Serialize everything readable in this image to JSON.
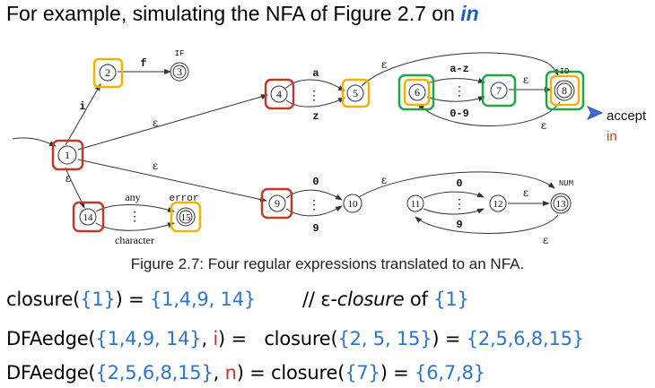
{
  "heading": {
    "prefix": "For example, simulating the NFA of Figure 2.7 on ",
    "keyword": "in"
  },
  "diagram": {
    "states": [
      "1",
      "2",
      "3",
      "4",
      "5",
      "6",
      "7",
      "8",
      "9",
      "10",
      "11",
      "12",
      "13",
      "14",
      "15"
    ],
    "state_tags": {
      "s3": "IF",
      "s8": "ID",
      "s13": "NUM"
    },
    "edge_labels": {
      "i": "i",
      "f": "f",
      "a": "a",
      "z": "z",
      "a_z": "a-z",
      "0_9": "0-9",
      "zero": "0",
      "nine": "9",
      "any": "any",
      "error": "error",
      "character": "character",
      "epsilon": "ε",
      "dots": "⋮"
    },
    "accept_word": "accept",
    "accept_input": "in",
    "highlight_colors": {
      "red": "#c0392b",
      "yellow": "#f0b400",
      "green": "#1fa64a"
    }
  },
  "caption": "Figure 2.7: Four regular expressions translated to an NFA.",
  "equations": {
    "line1": {
      "fn": "closure(",
      "set": "{1}",
      "mid": ") = ",
      "result": "{1,4,9, 14}",
      "comment": "// ε-",
      "comment_em": "closure",
      "comment_of": " of ",
      "comment_set": "{1}"
    },
    "line2": {
      "fn": "DFAedge(",
      "set": "{1,4,9, 14}",
      "comma": ", ",
      "sym": "i",
      "mid": ") =   closure(",
      "set2": "{2, 5, 15}",
      "mid2": ") = ",
      "result": "{2,5,6,8,15}"
    },
    "line3": {
      "fn": "DFAedge(",
      "set": "{2,5,6,8,15}",
      "comma": ", ",
      "sym": "n",
      "mid": ") = closure(",
      "set2": "{7}",
      "mid2": ") = ",
      "result": "{6,7,8}"
    }
  }
}
